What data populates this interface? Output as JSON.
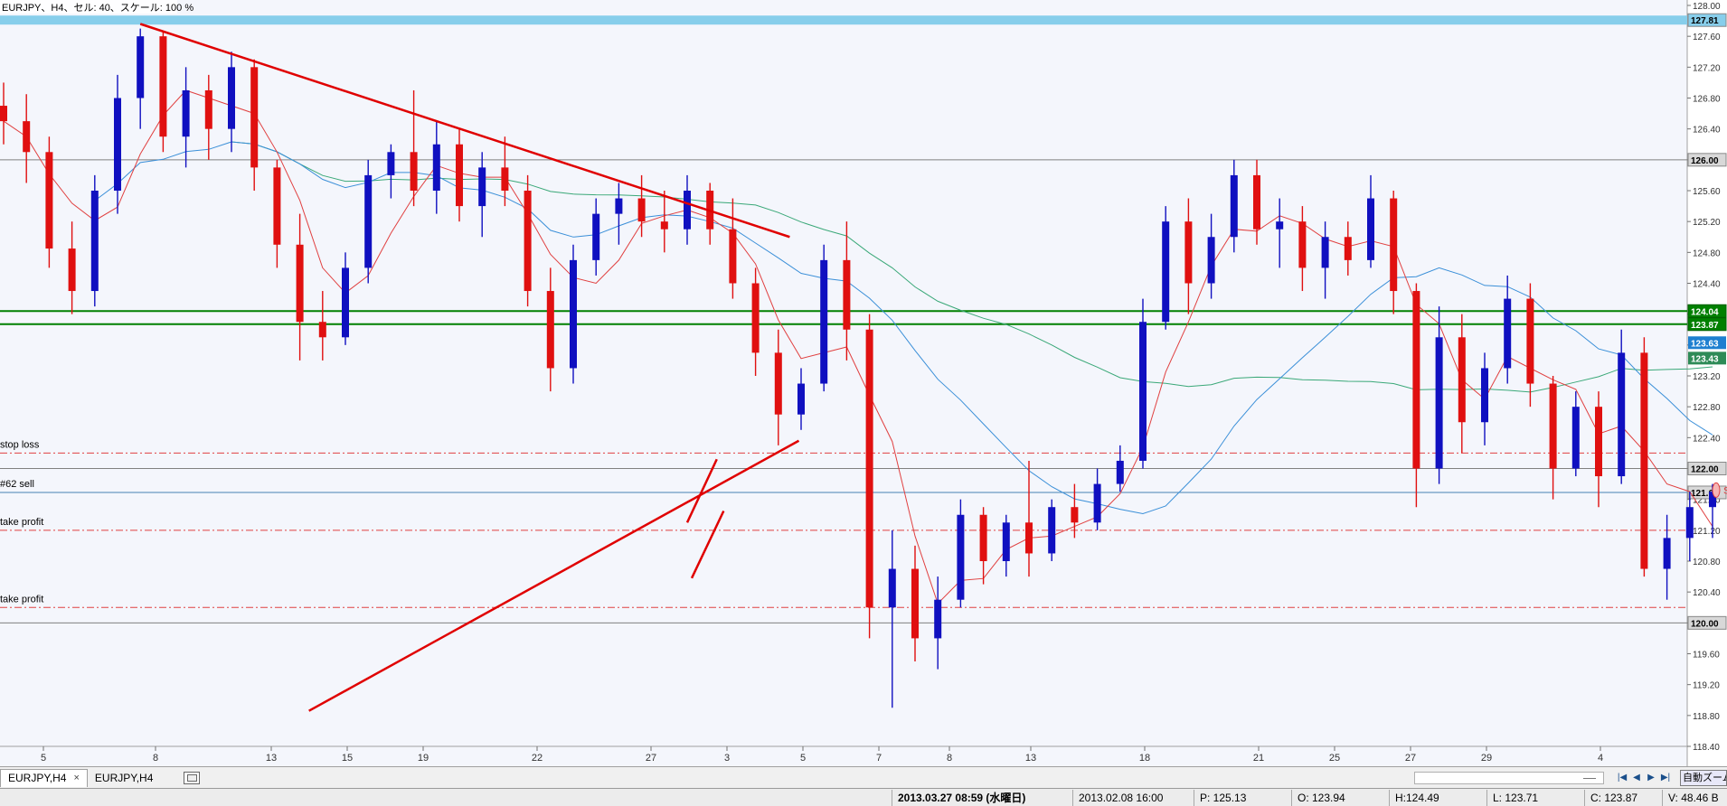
{
  "chart_data": {
    "type": "candlestick",
    "title": "EURJPY、H4、セル: 40、スケール: 100 %",
    "y_range": [
      118.4,
      128.0
    ],
    "y_ticks": [
      "128.00",
      "127.60",
      "127.20",
      "126.80",
      "126.40",
      "126.00",
      "125.60",
      "125.20",
      "124.80",
      "124.40",
      "124.00",
      "123.60",
      "123.20",
      "122.80",
      "122.40",
      "122.00",
      "121.60",
      "121.20",
      "120.80",
      "120.40",
      "120.00",
      "119.60",
      "119.20",
      "118.80",
      "118.40"
    ],
    "x_labels": [
      "5",
      "8",
      "13",
      "15",
      "19",
      "22",
      "27",
      "3",
      "5",
      "7",
      "8",
      "13",
      "18",
      "21",
      "25",
      "27",
      "29",
      "4"
    ],
    "horizontal_lines": [
      {
        "name": "top-band",
        "price": 127.81,
        "label": "127.81",
        "color": "#87ceeb",
        "style": "band"
      },
      {
        "name": "level-126",
        "price": 126.0,
        "label": "126.00",
        "color": "#808080",
        "style": "solid"
      },
      {
        "name": "green-upper",
        "price": 124.04,
        "label": "124.04",
        "color": "#008000",
        "style": "solid"
      },
      {
        "name": "green-lower",
        "price": 123.87,
        "label": "123.87",
        "color": "#008000",
        "style": "solid"
      },
      {
        "name": "stop-loss",
        "price": 122.2,
        "label": "",
        "text": "stop loss",
        "color": "#e04040",
        "style": "dashdot"
      },
      {
        "name": "level-122",
        "price": 122.0,
        "label": "122.00",
        "color": "#808080",
        "style": "solid"
      },
      {
        "name": "sell-line",
        "price": 121.69,
        "label": "121.69",
        "text": "#62 sell",
        "color": "#4682b4",
        "style": "solid"
      },
      {
        "name": "take-profit-1",
        "price": 121.2,
        "label": "",
        "text": "take profit",
        "color": "#e04040",
        "style": "dashdot"
      },
      {
        "name": "take-profit-2",
        "price": 120.2,
        "label": "",
        "text": "take profit",
        "color": "#e04040",
        "style": "dashdot"
      },
      {
        "name": "level-120",
        "price": 120.0,
        "label": "120.00",
        "color": "#808080",
        "style": "solid"
      }
    ],
    "ma_tags": [
      {
        "label": "123.63",
        "price": 123.63,
        "color": "#1e7fd0"
      },
      {
        "label": "123.43",
        "price": 123.43,
        "color": "#2e8b57"
      }
    ],
    "sell_marker": {
      "text": "Sell",
      "price": 121.72
    },
    "trendlines": [
      {
        "name": "descending-resistance",
        "from": [
          6.0,
          127.76
        ],
        "to": [
          34.5,
          125.0
        ]
      },
      {
        "name": "ascending-support",
        "from": [
          13.4,
          118.86
        ],
        "to": [
          34.9,
          122.36
        ]
      },
      {
        "name": "channel-upper",
        "from": [
          30.0,
          121.3
        ],
        "to": [
          31.3,
          122.12
        ]
      },
      {
        "name": "channel-lower",
        "from": [
          30.2,
          120.58
        ],
        "to": [
          31.6,
          121.45
        ]
      }
    ],
    "candles": [
      {
        "o": 126.7,
        "h": 127.0,
        "l": 126.2,
        "c": 126.5
      },
      {
        "o": 126.5,
        "h": 126.85,
        "l": 125.7,
        "c": 126.1
      },
      {
        "o": 126.1,
        "h": 126.3,
        "l": 124.6,
        "c": 124.85
      },
      {
        "o": 124.85,
        "h": 125.2,
        "l": 124.0,
        "c": 124.3
      },
      {
        "o": 124.3,
        "h": 125.8,
        "l": 124.1,
        "c": 125.6
      },
      {
        "o": 125.6,
        "h": 127.1,
        "l": 125.3,
        "c": 126.8
      },
      {
        "o": 126.8,
        "h": 127.7,
        "l": 126.4,
        "c": 127.6
      },
      {
        "o": 127.6,
        "h": 127.65,
        "l": 126.1,
        "c": 126.3
      },
      {
        "o": 126.3,
        "h": 127.2,
        "l": 125.9,
        "c": 126.9
      },
      {
        "o": 126.9,
        "h": 127.1,
        "l": 126.0,
        "c": 126.4
      },
      {
        "o": 126.4,
        "h": 127.4,
        "l": 126.1,
        "c": 127.2
      },
      {
        "o": 127.2,
        "h": 127.3,
        "l": 125.6,
        "c": 125.9
      },
      {
        "o": 125.9,
        "h": 126.0,
        "l": 124.6,
        "c": 124.9
      },
      {
        "o": 124.9,
        "h": 125.3,
        "l": 123.4,
        "c": 123.9
      },
      {
        "o": 123.9,
        "h": 124.3,
        "l": 123.4,
        "c": 123.7
      },
      {
        "o": 123.7,
        "h": 124.8,
        "l": 123.6,
        "c": 124.6
      },
      {
        "o": 124.6,
        "h": 126.0,
        "l": 124.4,
        "c": 125.8
      },
      {
        "o": 125.8,
        "h": 126.2,
        "l": 125.5,
        "c": 126.1
      },
      {
        "o": 126.1,
        "h": 126.9,
        "l": 125.4,
        "c": 125.6
      },
      {
        "o": 125.6,
        "h": 126.5,
        "l": 125.3,
        "c": 126.2
      },
      {
        "o": 126.2,
        "h": 126.4,
        "l": 125.2,
        "c": 125.4
      },
      {
        "o": 125.4,
        "h": 126.1,
        "l": 125.0,
        "c": 125.9
      },
      {
        "o": 125.9,
        "h": 126.3,
        "l": 125.4,
        "c": 125.6
      },
      {
        "o": 125.6,
        "h": 125.8,
        "l": 124.1,
        "c": 124.3
      },
      {
        "o": 124.3,
        "h": 124.6,
        "l": 123.0,
        "c": 123.3
      },
      {
        "o": 123.3,
        "h": 124.9,
        "l": 123.1,
        "c": 124.7
      },
      {
        "o": 124.7,
        "h": 125.5,
        "l": 124.5,
        "c": 125.3
      },
      {
        "o": 125.3,
        "h": 125.7,
        "l": 124.9,
        "c": 125.5
      },
      {
        "o": 125.5,
        "h": 125.8,
        "l": 125.0,
        "c": 125.2
      },
      {
        "o": 125.2,
        "h": 125.6,
        "l": 124.8,
        "c": 125.1
      },
      {
        "o": 125.1,
        "h": 125.8,
        "l": 124.9,
        "c": 125.6
      },
      {
        "o": 125.6,
        "h": 125.7,
        "l": 124.9,
        "c": 125.1
      },
      {
        "o": 125.1,
        "h": 125.5,
        "l": 124.2,
        "c": 124.4
      },
      {
        "o": 124.4,
        "h": 124.6,
        "l": 123.2,
        "c": 123.5
      },
      {
        "o": 123.5,
        "h": 123.8,
        "l": 122.3,
        "c": 122.7
      },
      {
        "o": 122.7,
        "h": 123.3,
        "l": 122.5,
        "c": 123.1
      },
      {
        "o": 123.1,
        "h": 124.9,
        "l": 123.0,
        "c": 124.7
      },
      {
        "o": 124.7,
        "h": 125.2,
        "l": 123.4,
        "c": 123.8
      },
      {
        "o": 123.8,
        "h": 124.0,
        "l": 119.8,
        "c": 120.2
      },
      {
        "o": 120.2,
        "h": 121.2,
        "l": 118.9,
        "c": 120.7
      },
      {
        "o": 120.7,
        "h": 121.0,
        "l": 119.5,
        "c": 119.8
      },
      {
        "o": 119.8,
        "h": 120.6,
        "l": 119.4,
        "c": 120.3
      },
      {
        "o": 120.3,
        "h": 121.6,
        "l": 120.2,
        "c": 121.4
      },
      {
        "o": 121.4,
        "h": 121.5,
        "l": 120.5,
        "c": 120.8
      },
      {
        "o": 120.8,
        "h": 121.4,
        "l": 120.6,
        "c": 121.3
      },
      {
        "o": 121.3,
        "h": 122.1,
        "l": 120.6,
        "c": 120.9
      },
      {
        "o": 120.9,
        "h": 121.6,
        "l": 120.8,
        "c": 121.5
      },
      {
        "o": 121.5,
        "h": 121.8,
        "l": 121.1,
        "c": 121.3
      },
      {
        "o": 121.3,
        "h": 122.0,
        "l": 121.2,
        "c": 121.8
      },
      {
        "o": 121.8,
        "h": 122.3,
        "l": 121.7,
        "c": 122.1
      },
      {
        "o": 122.1,
        "h": 124.2,
        "l": 122.0,
        "c": 123.9
      },
      {
        "o": 123.9,
        "h": 125.4,
        "l": 123.8,
        "c": 125.2
      },
      {
        "o": 125.2,
        "h": 125.5,
        "l": 124.0,
        "c": 124.4
      },
      {
        "o": 124.4,
        "h": 125.3,
        "l": 124.2,
        "c": 125.0
      },
      {
        "o": 125.0,
        "h": 126.0,
        "l": 124.8,
        "c": 125.8
      },
      {
        "o": 125.8,
        "h": 126.0,
        "l": 124.9,
        "c": 125.1
      },
      {
        "o": 125.1,
        "h": 125.5,
        "l": 124.6,
        "c": 125.2
      },
      {
        "o": 125.2,
        "h": 125.4,
        "l": 124.3,
        "c": 124.6
      },
      {
        "o": 124.6,
        "h": 125.2,
        "l": 124.2,
        "c": 125.0
      },
      {
        "o": 125.0,
        "h": 125.2,
        "l": 124.5,
        "c": 124.7
      },
      {
        "o": 124.7,
        "h": 125.8,
        "l": 124.6,
        "c": 125.5
      },
      {
        "o": 125.5,
        "h": 125.6,
        "l": 124.0,
        "c": 124.3
      },
      {
        "o": 124.3,
        "h": 124.4,
        "l": 121.5,
        "c": 122.0
      },
      {
        "o": 122.0,
        "h": 124.1,
        "l": 121.8,
        "c": 123.7
      },
      {
        "o": 123.7,
        "h": 124.0,
        "l": 122.2,
        "c": 122.6
      },
      {
        "o": 122.6,
        "h": 123.5,
        "l": 122.3,
        "c": 123.3
      },
      {
        "o": 123.3,
        "h": 124.5,
        "l": 123.1,
        "c": 124.2
      },
      {
        "o": 124.2,
        "h": 124.4,
        "l": 122.8,
        "c": 123.1
      },
      {
        "o": 123.1,
        "h": 123.2,
        "l": 121.6,
        "c": 122.0
      },
      {
        "o": 122.0,
        "h": 123.0,
        "l": 121.9,
        "c": 122.8
      },
      {
        "o": 122.8,
        "h": 123.0,
        "l": 121.5,
        "c": 121.9
      },
      {
        "o": 121.9,
        "h": 123.8,
        "l": 121.8,
        "c": 123.5
      },
      {
        "o": 123.5,
        "h": 123.7,
        "l": 120.6,
        "c": 120.7
      },
      {
        "o": 120.7,
        "h": 121.4,
        "l": 120.3,
        "c": 121.1
      },
      {
        "o": 121.1,
        "h": 121.7,
        "l": 120.8,
        "c": 121.5
      },
      {
        "o": 121.5,
        "h": 121.8,
        "l": 121.1,
        "c": 121.7
      }
    ]
  },
  "price_scale_tags": {
    "tag_127_81": "127.81",
    "tag_126": "126.00",
    "tag_124_04": "124.04",
    "tag_123_87": "123.87",
    "tag_123_63": "123.63",
    "tag_123_43": "123.43",
    "tag_122": "122.00",
    "tag_121_69": "121.69",
    "tag_120": "120.00"
  },
  "line_labels": {
    "stop_loss": "stop loss",
    "sell": "#62 sell",
    "take_profit_1": "take profit",
    "take_profit_2": "take profit",
    "sell_marker": "Sell"
  },
  "tabs": {
    "tab1": "EURJPY,H4",
    "tab1_close": "×",
    "tab2": "EURJPY,H4",
    "auto_zoom": "自動ズーム"
  },
  "nav": {
    "first": "|◀",
    "prev": "◀",
    "next": "▶",
    "last": "▶|"
  },
  "status": {
    "time": "2013.03.27 08:59 (水曜日)",
    "bar_time": "2013.02.08 16:00",
    "pivot": "P: 125.13",
    "open": "O: 123.94",
    "high": "H:124.49",
    "low": "L: 123.71",
    "close": "C: 123.87",
    "volume": "V: 48.46 B"
  },
  "colors": {
    "background": "#f4f6fc",
    "bull": "#1010c0",
    "bear": "#e01010",
    "ma_fast": "#e04040",
    "ma_mid": "#3a8fd8",
    "ma_slow": "#3aa878",
    "trendline": "#e00000"
  }
}
